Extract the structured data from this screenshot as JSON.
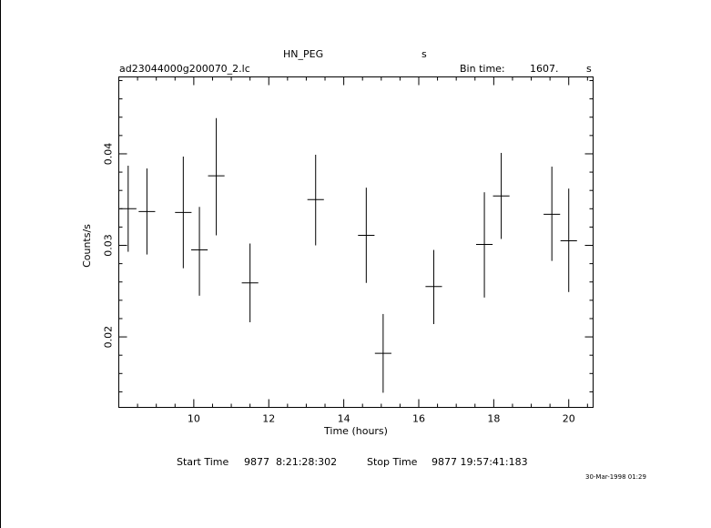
{
  "header": {
    "object": "HN_PEG",
    "units_top": "s",
    "filename": "ad23044000g200070_2.lc",
    "bin_time_label": "Bin time:",
    "bin_time_value": "1607.",
    "bin_time_unit": "s"
  },
  "footer": {
    "start_time_label": "Start Time",
    "start_time_value": "9877  8:21:28:302",
    "stop_time_label": "Stop Time",
    "stop_time_value": "9877 19:57:41:183",
    "timestamp": "30-Mar-1998 01:29"
  },
  "chart_data": {
    "type": "scatter",
    "title": "HN_PEG",
    "xlabel": "Time (hours)",
    "ylabel": "Counts/s",
    "xlim": [
      8.0,
      20.65
    ],
    "ylim": [
      0.0123,
      0.0484
    ],
    "x_ticks": [
      10,
      12,
      14,
      16,
      18,
      20
    ],
    "y_ticks": [
      0.02,
      0.03,
      0.04
    ],
    "x_tick_labels": [
      "10",
      "12",
      "14",
      "16",
      "18",
      "20"
    ],
    "y_tick_labels": [
      "0.02",
      "0.03",
      "0.04"
    ],
    "grid": false,
    "error_bars": true,
    "points": [
      {
        "x": 8.25,
        "y": 0.034,
        "xerr": 0.22,
        "yerr_lo": 0.0047,
        "yerr_hi": 0.0047
      },
      {
        "x": 8.75,
        "y": 0.0337,
        "xerr": 0.22,
        "yerr_lo": 0.0047,
        "yerr_hi": 0.0047
      },
      {
        "x": 9.72,
        "y": 0.0336,
        "xerr": 0.22,
        "yerr_lo": 0.0061,
        "yerr_hi": 0.0061
      },
      {
        "x": 10.15,
        "y": 0.0295,
        "xerr": 0.22,
        "yerr_lo": 0.005,
        "yerr_hi": 0.0047
      },
      {
        "x": 10.6,
        "y": 0.0376,
        "xerr": 0.22,
        "yerr_lo": 0.0065,
        "yerr_hi": 0.0063
      },
      {
        "x": 11.5,
        "y": 0.0259,
        "xerr": 0.22,
        "yerr_lo": 0.0043,
        "yerr_hi": 0.0043
      },
      {
        "x": 13.25,
        "y": 0.035,
        "xerr": 0.22,
        "yerr_lo": 0.005,
        "yerr_hi": 0.0049
      },
      {
        "x": 14.6,
        "y": 0.0311,
        "xerr": 0.22,
        "yerr_lo": 0.0052,
        "yerr_hi": 0.0052
      },
      {
        "x": 15.05,
        "y": 0.0182,
        "xerr": 0.22,
        "yerr_lo": 0.0043,
        "yerr_hi": 0.0043
      },
      {
        "x": 16.4,
        "y": 0.0255,
        "xerr": 0.22,
        "yerr_lo": 0.0041,
        "yerr_hi": 0.004
      },
      {
        "x": 17.75,
        "y": 0.0301,
        "xerr": 0.22,
        "yerr_lo": 0.0058,
        "yerr_hi": 0.0057
      },
      {
        "x": 18.2,
        "y": 0.0354,
        "xerr": 0.22,
        "yerr_lo": 0.0047,
        "yerr_hi": 0.0047
      },
      {
        "x": 19.55,
        "y": 0.0334,
        "xerr": 0.22,
        "yerr_lo": 0.0051,
        "yerr_hi": 0.0052
      },
      {
        "x": 20.0,
        "y": 0.0305,
        "xerr": 0.22,
        "yerr_lo": 0.0056,
        "yerr_hi": 0.0057
      }
    ]
  }
}
